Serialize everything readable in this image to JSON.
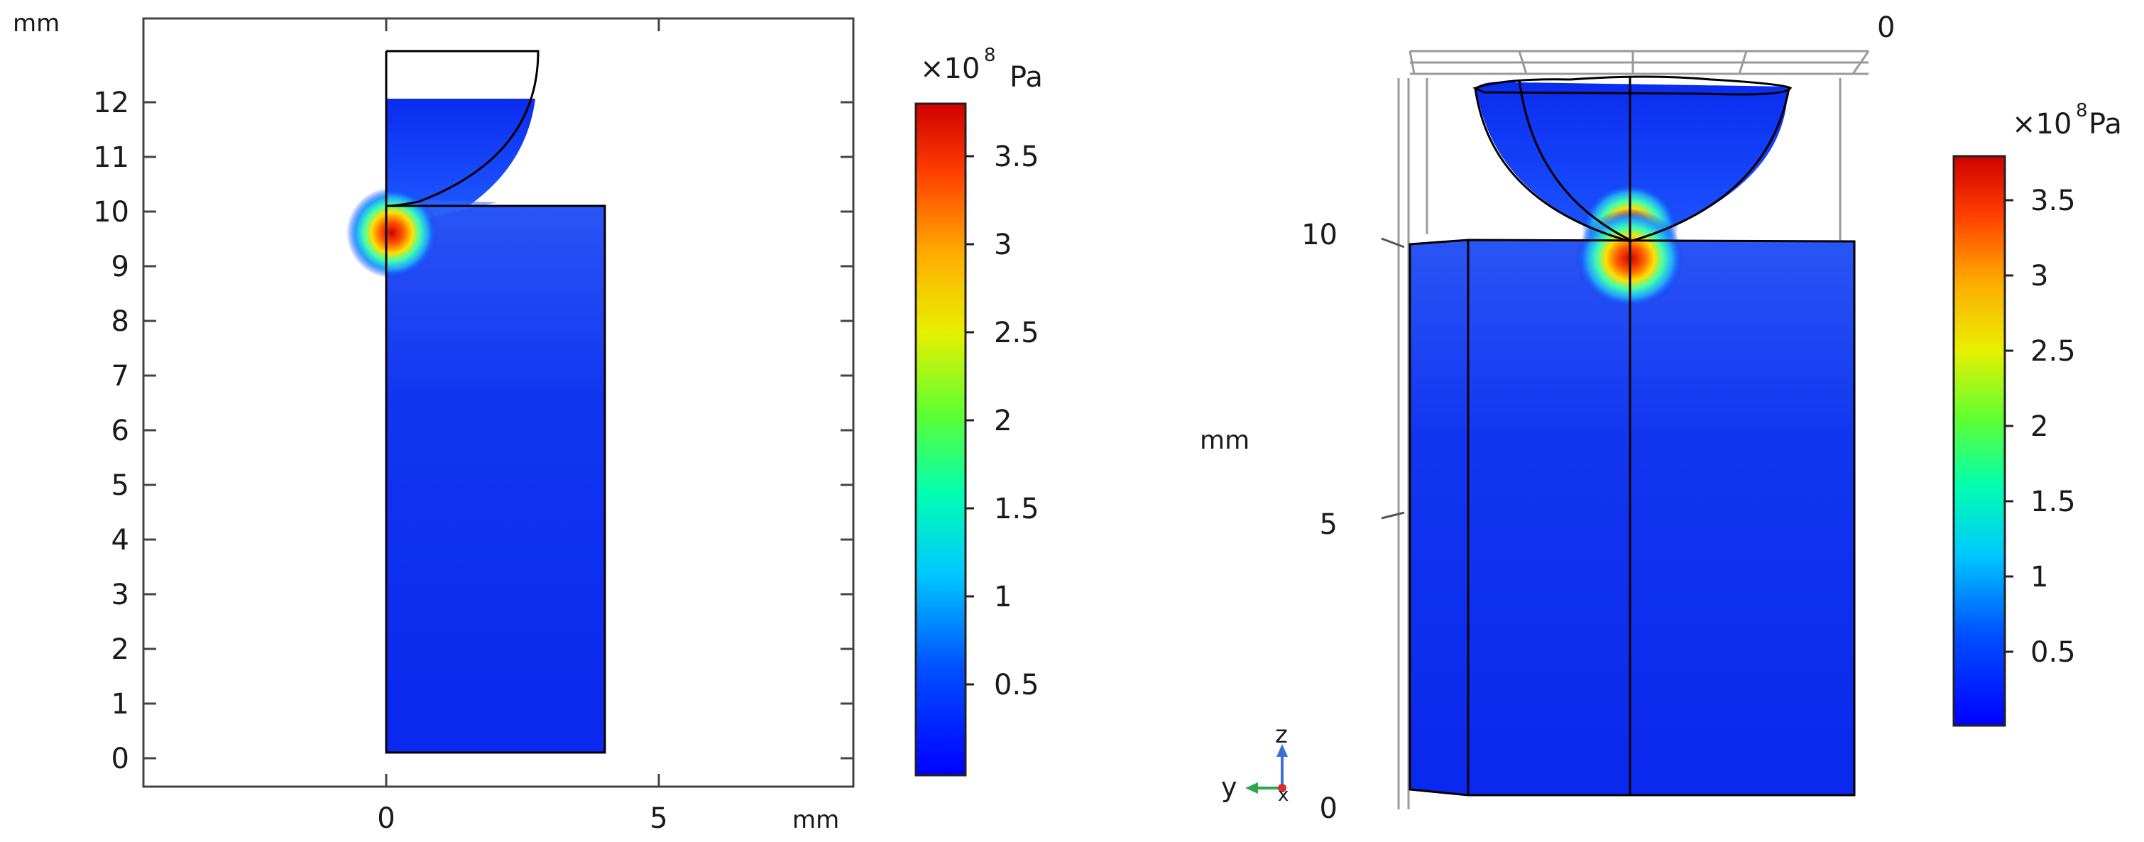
{
  "left_plot": {
    "y_axis_unit": "mm",
    "x_axis_unit": "mm",
    "y_ticks": [
      "0",
      "1",
      "2",
      "3",
      "4",
      "5",
      "6",
      "7",
      "8",
      "9",
      "10",
      "11",
      "12"
    ],
    "x_ticks": [
      "0",
      "5"
    ],
    "colorbar": {
      "multiplier_base": "×10",
      "multiplier_exp": "8",
      "unit": "Pa",
      "ticks": [
        "0.5",
        "1",
        "1.5",
        "2",
        "2.5",
        "3",
        "3.5"
      ]
    }
  },
  "right_plot": {
    "top_label": "0",
    "z_axis_unit": "mm",
    "z_ticks": [
      "0",
      "5",
      "10"
    ],
    "triad": {
      "z": "z",
      "y": "y",
      "x": "x"
    },
    "colorbar": {
      "multiplier_base": "×10",
      "multiplier_exp": "8",
      "unit": "Pa",
      "ticks": [
        "0.5",
        "1",
        "1.5",
        "2",
        "2.5",
        "3",
        "3.5"
      ]
    }
  },
  "colors": {
    "field_base": "#1030f0",
    "hotspot": "#e00000",
    "outline": "#000000"
  }
}
